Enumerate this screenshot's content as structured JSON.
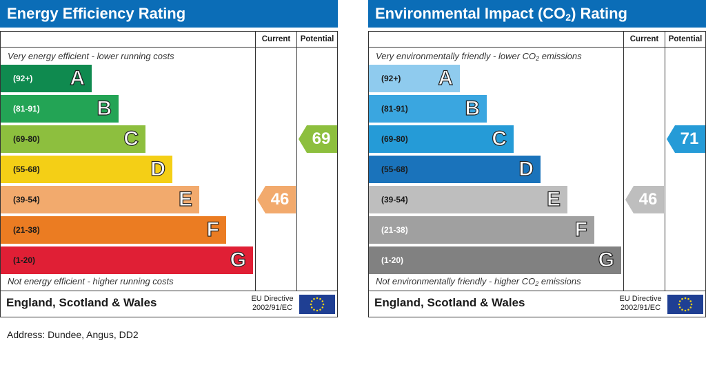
{
  "chart_data": [
    {
      "type": "bar",
      "title": "Energy Efficiency Rating",
      "columns": [
        "Current",
        "Potential"
      ],
      "top_caption": "Very energy efficient - lower running costs",
      "bottom_caption": "Not energy efficient - higher running costs",
      "bands": [
        {
          "letter": "A",
          "range": "(92+)",
          "color": "#0f8a4f",
          "text_color": "#ffffff"
        },
        {
          "letter": "B",
          "range": "(81-91)",
          "color": "#23a455",
          "text_color": "#ffffff"
        },
        {
          "letter": "C",
          "range": "(69-80)",
          "color": "#8dbf3e",
          "text_color": "#1a1a1a"
        },
        {
          "letter": "D",
          "range": "(55-68)",
          "color": "#f4cf16",
          "text_color": "#1a1a1a"
        },
        {
          "letter": "E",
          "range": "(39-54)",
          "color": "#f2aa6d",
          "text_color": "#1a1a1a"
        },
        {
          "letter": "F",
          "range": "(21-38)",
          "color": "#eb7c22",
          "text_color": "#1a1a1a"
        },
        {
          "letter": "G",
          "range": "(1-20)",
          "color": "#e01f35",
          "text_color": "#1a1a1a"
        }
      ],
      "current": {
        "value": "46",
        "band": "E",
        "color": "#f2aa6d"
      },
      "potential": {
        "value": "69",
        "band": "C",
        "color": "#8dbf3e"
      },
      "region": "England, Scotland & Wales",
      "directive_line1": "EU Directive",
      "directive_line2": "2002/91/EC"
    },
    {
      "type": "bar",
      "title_prefix": "Environmental Impact (CO",
      "title_sub": "2",
      "title_suffix": ") Rating",
      "columns": [
        "Current",
        "Potential"
      ],
      "top_caption_prefix": "Very environmentally friendly - lower CO",
      "top_caption_sub": "2",
      "top_caption_suffix": " emissions",
      "bottom_caption_prefix": "Not environmentally friendly - higher CO",
      "bottom_caption_sub": "2",
      "bottom_caption_suffix": " emissions",
      "bands": [
        {
          "letter": "A",
          "range": "(92+)",
          "color": "#8fcbee",
          "text_color": "#1a1a1a"
        },
        {
          "letter": "B",
          "range": "(81-91)",
          "color": "#3aa6e0",
          "text_color": "#1a1a1a"
        },
        {
          "letter": "C",
          "range": "(69-80)",
          "color": "#259bd7",
          "text_color": "#1a1a1a"
        },
        {
          "letter": "D",
          "range": "(55-68)",
          "color": "#1a73bb",
          "text_color": "#1a1a1a"
        },
        {
          "letter": "E",
          "range": "(39-54)",
          "color": "#bebebe",
          "text_color": "#1a1a1a"
        },
        {
          "letter": "F",
          "range": "(21-38)",
          "color": "#a0a0a0",
          "text_color": "#ffffff"
        },
        {
          "letter": "G",
          "range": "(1-20)",
          "color": "#818181",
          "text_color": "#ffffff"
        }
      ],
      "current": {
        "value": "46",
        "band": "E",
        "color": "#bebebe"
      },
      "potential": {
        "value": "71",
        "band": "C",
        "color": "#259bd7"
      },
      "region": "England, Scotland & Wales",
      "directive_line1": "EU Directive",
      "directive_line2": "2002/91/EC"
    }
  ],
  "address": "Address: Dundee, Angus, DD2"
}
